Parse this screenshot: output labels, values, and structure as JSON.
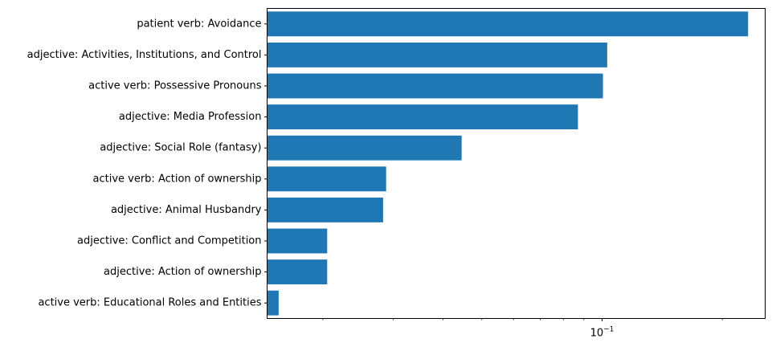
{
  "chart_data": {
    "type": "bar",
    "orientation": "horizontal",
    "x_scale": "log",
    "categories": [
      "patient verb: Avoidance",
      "adjective: Activities, Institutions, and Control",
      "active verb: Possessive Pronouns",
      "adjective: Media Profession",
      "adjective: Social Role (fantasy)",
      "active verb: Action of ownership",
      "adjective: Animal Husbandry",
      "adjective: Conflict and Competition",
      "adjective: Action of ownership",
      "active verb: Educational Roles and Entities"
    ],
    "values": [
      0.232,
      0.103,
      0.1005,
      0.087,
      0.0445,
      0.0288,
      0.0283,
      0.0205,
      0.0205,
      0.0155
    ],
    "xlim": [
      0.0145,
      0.256
    ],
    "major_ticks": [
      {
        "value": 0.1,
        "base": "10",
        "exponent": "−1"
      }
    ],
    "minor_ticks": [
      0.02,
      0.03,
      0.04,
      0.05,
      0.06,
      0.07,
      0.08,
      0.09,
      0.2
    ],
    "title": "",
    "xlabel": "",
    "ylabel": "",
    "bar_color": "#1f77b4",
    "grid": false,
    "legend": "none"
  }
}
